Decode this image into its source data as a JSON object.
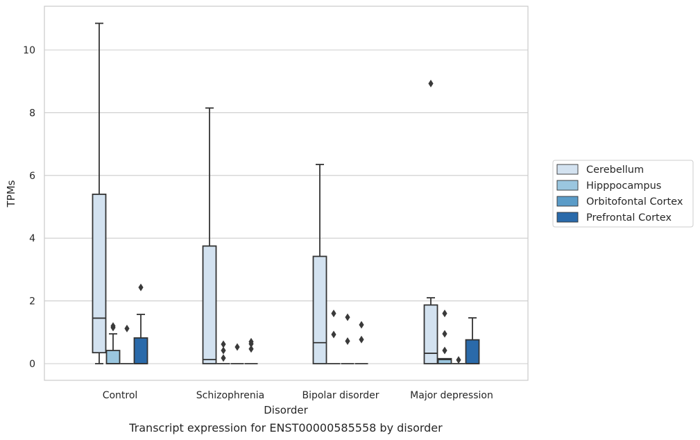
{
  "caption": "Transcript expression for ENST00000585558 by disorder",
  "chart_data": {
    "type": "box",
    "xlabel": "Disorder",
    "ylabel": "TPMs",
    "ylim": [
      -0.5,
      11.4
    ],
    "yticks": [
      0,
      2,
      4,
      6,
      8,
      10
    ],
    "grid": "horizontal",
    "legend_position": "right",
    "categories": [
      "Control",
      "Schizophrenia",
      "Bipolar disorder",
      "Major depression"
    ],
    "series": [
      {
        "name": "Cerebellum",
        "color": "#d3e2f0",
        "boxes": [
          {
            "whislo": 0,
            "q1": 0.35,
            "med": 1.45,
            "q3": 5.4,
            "whishi": 10.85,
            "fliers": []
          },
          {
            "whislo": 0,
            "q1": 0,
            "med": 0.13,
            "q3": 3.75,
            "whishi": 8.15,
            "fliers": []
          },
          {
            "whislo": 0,
            "q1": 0,
            "med": 0.67,
            "q3": 3.42,
            "whishi": 6.35,
            "fliers": []
          },
          {
            "whislo": 0,
            "q1": 0,
            "med": 0.33,
            "q3": 1.87,
            "whishi": 2.1,
            "fliers": [
              8.93
            ]
          }
        ]
      },
      {
        "name": "Hipppocampus",
        "color": "#9ac6df",
        "boxes": [
          {
            "whislo": 0,
            "q1": 0,
            "med": 0,
            "q3": 0.42,
            "whishi": 0.95,
            "fliers": [
              1.15,
              1.2
            ]
          },
          {
            "whislo": 0,
            "q1": 0,
            "med": 0,
            "q3": 0,
            "whishi": 0,
            "fliers": [
              0.18,
              0.42,
              0.62
            ]
          },
          {
            "whislo": 0,
            "q1": 0,
            "med": 0,
            "q3": 0,
            "whishi": 0,
            "fliers": [
              0.93,
              1.6
            ]
          },
          {
            "whislo": 0,
            "q1": 0,
            "med": 0.13,
            "q3": 0.16,
            "whishi": 0.16,
            "fliers": [
              0.42,
              0.95,
              1.6
            ]
          }
        ]
      },
      {
        "name": "Orbitofontal Cortex",
        "color": "#5b9cc8",
        "boxes": [
          {
            "whislo": 0,
            "q1": 0,
            "med": 0,
            "q3": 0,
            "whishi": 0,
            "fliers": [
              1.12
            ]
          },
          {
            "whislo": 0,
            "q1": 0,
            "med": 0,
            "q3": 0,
            "whishi": 0,
            "fliers": [
              0.53
            ]
          },
          {
            "whislo": 0,
            "q1": 0,
            "med": 0,
            "q3": 0,
            "whishi": 0,
            "fliers": [
              0.72,
              1.48
            ]
          },
          {
            "whislo": 0,
            "q1": 0,
            "med": 0,
            "q3": 0,
            "whishi": 0,
            "fliers": [
              0.12
            ]
          }
        ]
      },
      {
        "name": "Prefrontal Cortex",
        "color": "#2a6aaa",
        "boxes": [
          {
            "whislo": 0,
            "q1": 0,
            "med": 0,
            "q3": 0.82,
            "whishi": 1.57,
            "fliers": [
              2.43
            ]
          },
          {
            "whislo": 0,
            "q1": 0,
            "med": 0,
            "q3": 0,
            "whishi": 0,
            "fliers": [
              0.47,
              0.63,
              0.7
            ]
          },
          {
            "whislo": 0,
            "q1": 0,
            "med": 0,
            "q3": 0,
            "whishi": 0,
            "fliers": [
              0.77,
              1.24
            ]
          },
          {
            "whislo": 0,
            "q1": 0,
            "med": 0,
            "q3": 0.76,
            "whishi": 1.46,
            "fliers": []
          }
        ]
      }
    ]
  }
}
